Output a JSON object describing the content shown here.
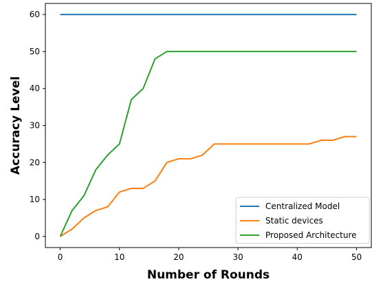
{
  "chart_data": {
    "type": "line",
    "title": "",
    "xlabel": "Number of Rounds",
    "ylabel": "Accuracy Level",
    "xlim": [
      -2.5,
      52.5
    ],
    "ylim": [
      -3,
      63
    ],
    "xticks": [
      0,
      10,
      20,
      30,
      40,
      50
    ],
    "yticks": [
      0,
      10,
      20,
      30,
      40,
      50,
      60
    ],
    "grid": false,
    "legend_position": "lower-right",
    "series": [
      {
        "name": "Centralized Model",
        "color": "#1f77b4",
        "points": [
          [
            0,
            60
          ],
          [
            50,
            60
          ]
        ]
      },
      {
        "name": "Static devices",
        "color": "#ff7f0e",
        "points": [
          [
            0,
            0
          ],
          [
            2,
            2
          ],
          [
            4,
            5
          ],
          [
            6,
            7
          ],
          [
            8,
            8
          ],
          [
            10,
            12
          ],
          [
            12,
            13
          ],
          [
            14,
            13
          ],
          [
            16,
            15
          ],
          [
            18,
            20
          ],
          [
            20,
            21
          ],
          [
            22,
            21
          ],
          [
            24,
            22
          ],
          [
            26,
            25
          ],
          [
            28,
            25
          ],
          [
            30,
            25
          ],
          [
            32,
            25
          ],
          [
            34,
            25
          ],
          [
            36,
            25
          ],
          [
            38,
            25
          ],
          [
            40,
            25
          ],
          [
            42,
            25
          ],
          [
            44,
            26
          ],
          [
            46,
            26
          ],
          [
            48,
            27
          ],
          [
            50,
            27
          ]
        ]
      },
      {
        "name": "Proposed Architecture",
        "color": "#2ca02c",
        "points": [
          [
            0,
            0
          ],
          [
            2,
            7
          ],
          [
            4,
            11
          ],
          [
            6,
            18
          ],
          [
            8,
            22
          ],
          [
            10,
            25
          ],
          [
            12,
            37
          ],
          [
            14,
            40
          ],
          [
            16,
            48
          ],
          [
            18,
            50
          ],
          [
            20,
            50
          ],
          [
            25,
            50
          ],
          [
            30,
            50
          ],
          [
            35,
            50
          ],
          [
            40,
            50
          ],
          [
            45,
            50
          ],
          [
            50,
            50
          ]
        ]
      }
    ]
  }
}
